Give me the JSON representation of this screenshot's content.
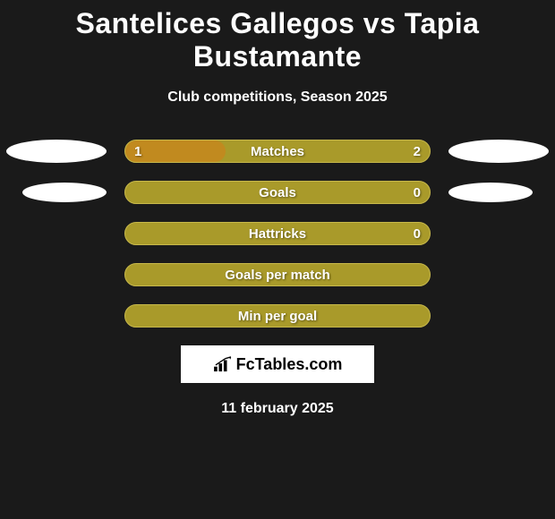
{
  "title": "Santelices Gallegos vs Tapia Bustamante",
  "subtitle": "Club competitions, Season 2025",
  "colors": {
    "background": "#1a1a1a",
    "bar_primary": "#a99a2a",
    "bar_secondary": "#c18a1f",
    "bar_border": "#c7b84a",
    "text": "#ffffff",
    "marker": "#ffffff"
  },
  "rows": [
    {
      "label": "Matches",
      "left_val": "1",
      "right_val": "2",
      "left_pct": 33,
      "right_pct": 67,
      "left_fill": "#c18a1f",
      "right_fill": "#a99a2a",
      "marker_left": true,
      "marker_right": true,
      "marker_small": false
    },
    {
      "label": "Goals",
      "left_val": "",
      "right_val": "0",
      "left_pct": 0,
      "right_pct": 100,
      "left_fill": "#c18a1f",
      "right_fill": "#a99a2a",
      "marker_left": true,
      "marker_right": true,
      "marker_small": true
    },
    {
      "label": "Hattricks",
      "left_val": "",
      "right_val": "0",
      "left_pct": 0,
      "right_pct": 100,
      "left_fill": "#c18a1f",
      "right_fill": "#a99a2a",
      "marker_left": false,
      "marker_right": false,
      "marker_small": false
    },
    {
      "label": "Goals per match",
      "left_val": "",
      "right_val": "",
      "left_pct": 0,
      "right_pct": 100,
      "left_fill": "#c18a1f",
      "right_fill": "#a99a2a",
      "marker_left": false,
      "marker_right": false,
      "marker_small": false
    },
    {
      "label": "Min per goal",
      "left_val": "",
      "right_val": "",
      "left_pct": 0,
      "right_pct": 100,
      "left_fill": "#c18a1f",
      "right_fill": "#a99a2a",
      "marker_left": false,
      "marker_right": false,
      "marker_small": false
    }
  ],
  "logo_text": "FcTables.com",
  "date": "11 february 2025"
}
